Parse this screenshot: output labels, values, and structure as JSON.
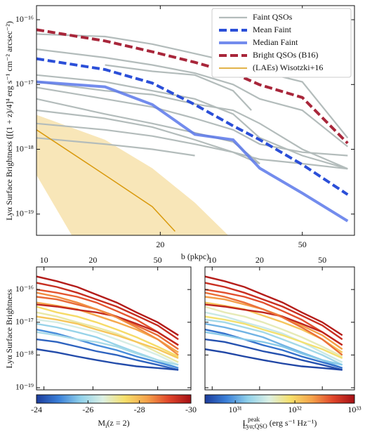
{
  "chart_data": [
    {
      "type": "line",
      "xlabel": "b (pkpc)",
      "ylabel": "Lyα Surface Brightness ([(1 + z)/4]⁴ erg s⁻¹ cm⁻² arcsec⁻²)",
      "xscale": "log",
      "yscale": "log",
      "xlim": [
        9,
        70
      ],
      "ylim": [
        4.7e-20,
        1.65e-16
      ],
      "xticks": [
        20,
        50
      ],
      "yticks": [
        {
          "value": 1e-19,
          "label": "10⁻¹⁹"
        },
        {
          "value": 1e-18,
          "label": "10⁻¹⁸"
        },
        {
          "value": 1e-17,
          "label": "10⁻¹⁷"
        },
        {
          "value": 1e-16,
          "label": "10⁻¹⁶"
        }
      ],
      "legend": "upper right",
      "band": {
        "color": "#f8e6b8",
        "x_upper": [
          9,
          14,
          19,
          25,
          31
        ],
        "upper": [
          3.4e-18,
          1.4e-18,
          5.1e-19,
          1.5e-19,
          4.7e-20
        ],
        "x_lower": [
          9,
          11.3
        ],
        "lower": [
          4e-19,
          4.7e-20
        ]
      },
      "faint": {
        "name": "Faint QSOs",
        "color": "#b3bcbb",
        "style": "solid",
        "lines": [
          {
            "x": [
              9,
              14,
              19,
              25,
              32,
              38,
              50,
              67
            ],
            "values": [
              6e-17,
              5.5e-17,
              4.2e-17,
              3e-17,
              2.2e-17,
              1.6e-17,
              1.1e-17,
              1.5e-18
            ]
          },
          {
            "x": [
              9,
              14,
              19,
              25,
              32,
              38,
              50,
              67
            ],
            "values": [
              3.5e-17,
              2.6e-17,
              2e-17,
              1.5e-17,
              1e-17,
              6e-18,
              4e-18,
              1.1e-18
            ]
          },
          {
            "x": [
              9,
              14,
              19,
              25,
              32,
              38,
              50,
              67
            ],
            "values": [
              1.4e-17,
              1.1e-17,
              8e-18,
              6e-18,
              3.5e-18,
              1.5e-18,
              8e-19,
              5e-19
            ]
          },
          {
            "x": [
              9,
              14,
              19,
              25,
              32,
              38,
              50,
              67
            ],
            "values": [
              1.1e-17,
              8e-18,
              7e-18,
              5e-18,
              4e-18,
              2.5e-18,
              1e-18,
              5e-19
            ]
          },
          {
            "x": [
              9,
              14,
              19,
              25,
              32,
              38,
              50,
              67
            ],
            "values": [
              9e-18,
              6e-18,
              4.5e-18,
              3e-18,
              2e-18,
              1.2e-18,
              9e-19,
              8e-19
            ]
          },
          {
            "x": [
              9,
              14,
              19,
              25,
              32,
              38
            ],
            "values": [
              6e-18,
              3.5e-18,
              2.5e-18,
              1.8e-18,
              1.3e-18,
              6e-19
            ]
          },
          {
            "x": [
              9,
              14,
              19,
              25,
              32,
              38,
              50,
              67
            ],
            "values": [
              4e-18,
              3e-18,
              2.2e-18,
              1.4e-18,
              9e-19,
              7e-19,
              6e-19,
              5e-19
            ]
          },
          {
            "x": [
              9,
              14,
              19,
              25,
              32,
              38
            ],
            "values": [
              2.5e-18,
              2e-18,
              1.6e-18,
              1.2e-18,
              9e-19,
              6e-19
            ]
          },
          {
            "x": [
              14,
              19,
              25,
              32,
              36
            ],
            "values": [
              2e-17,
              1.6e-17,
              1.4e-17,
              8e-18,
              4e-18
            ]
          },
          {
            "x": [
              9,
              14,
              19,
              25
            ],
            "values": [
              1.5e-18,
              1.2e-18,
              1e-18,
              8e-19
            ]
          }
        ]
      },
      "series": [
        {
          "name": "Mean Faint",
          "color": "#2b4fd8",
          "style": "dashed",
          "x": [
            9,
            14,
            19,
            25,
            32,
            38,
            50,
            67
          ],
          "values": [
            2.5e-17,
            1.7e-17,
            1.05e-17,
            4.9e-18,
            2.3e-18,
            1.4e-18,
            5.8e-19,
            2e-19
          ]
        },
        {
          "name": "Median Faint",
          "color": "#5a78ea",
          "style": "solid",
          "x": [
            9,
            14,
            19,
            25,
            32,
            38,
            50,
            67
          ],
          "values": [
            1.1e-17,
            9.2e-18,
            4.9e-18,
            1.7e-18,
            1.4e-18,
            5.1e-19,
            2.1e-19,
            7.8e-20
          ]
        },
        {
          "name": "Bright QSOs (B16)",
          "color": "#a8263a",
          "style": "dashed",
          "x": [
            9,
            14,
            19,
            25,
            32,
            38,
            50,
            67
          ],
          "values": [
            7e-17,
            4.7e-17,
            3.2e-17,
            2.2e-17,
            1.5e-17,
            9.9e-18,
            6.3e-18,
            1.24e-18
          ]
        },
        {
          "name": "(LAEs) Wisotzki+16",
          "color": "#d99a0e",
          "style": "thin",
          "x": [
            9,
            14,
            19,
            22
          ],
          "values": [
            2e-18,
            4e-19,
            1.3e-19,
            5.4e-20
          ]
        }
      ]
    },
    {
      "type": "line",
      "ylabel": "Lyα Surface Brightness",
      "xscale": "log",
      "yscale": "log",
      "xlim": [
        9,
        80
      ],
      "ylim": [
        8.6e-20,
        4.9e-16
      ],
      "xticks": [
        10,
        20,
        50
      ],
      "yticks": [
        {
          "value": 1e-19,
          "label": "10⁻¹⁹"
        },
        {
          "value": 1e-18,
          "label": "10⁻¹⁸"
        },
        {
          "value": 1e-17,
          "label": "10⁻¹⁷"
        },
        {
          "value": 1e-16,
          "label": "10⁻¹⁶"
        }
      ],
      "colormap": [
        "#1c3c9c",
        "#3a7fd8",
        "#8fd0ea",
        "#dcf0e4",
        "#f6e06a",
        "#f5a34a",
        "#e0452a",
        "#a50f15"
      ],
      "x": [
        9,
        12,
        16,
        21,
        28,
        37,
        50,
        67
      ],
      "lines": [
        {
          "mi": -29.8,
          "lpeak": 8e+32,
          "values": [
            2.5e-16,
            1.8e-16,
            1.2e-16,
            7e-17,
            4e-17,
            2e-17,
            1e-17,
            4e-18
          ]
        },
        {
          "mi": -29.5,
          "lpeak": 6e+32,
          "values": [
            1.6e-16,
            1.2e-16,
            8e-17,
            5e-17,
            3e-17,
            1.6e-17,
            8e-18,
            3e-18
          ]
        },
        {
          "mi": -29.0,
          "lpeak": 4e+32,
          "values": [
            1e-16,
            8e-17,
            6e-17,
            4e-17,
            2.2e-17,
            1.2e-17,
            5e-18,
            2e-18
          ]
        },
        {
          "mi": -28.8,
          "lpeak": 2e+32,
          "values": [
            6e-17,
            5e-17,
            3.5e-17,
            2.5e-17,
            1.5e-17,
            8e-18,
            4e-18,
            1.5e-18
          ]
        },
        {
          "mi": -28.2,
          "lpeak": 1.2e+32,
          "values": [
            4e-17,
            3.2e-17,
            2.5e-17,
            1.6e-17,
            1e-17,
            6e-18,
            3e-18,
            1.2e-18
          ]
        },
        {
          "mi": -29.6,
          "lpeak": 7e+32,
          "values": [
            3.5e-17,
            3e-17,
            2.4e-17,
            2e-17,
            1.5e-17,
            9e-18,
            5e-18,
            2e-18
          ]
        },
        {
          "mi": -27.5,
          "lpeak": 5e+31,
          "values": [
            3e-17,
            2e-17,
            1.5e-17,
            1e-17,
            6e-18,
            3.5e-18,
            1.8e-18,
            9e-19
          ]
        },
        {
          "mi": -27.0,
          "lpeak": 3e+31,
          "values": [
            2e-17,
            1.5e-17,
            1e-17,
            7e-18,
            4.5e-18,
            2.5e-18,
            1.2e-18,
            6e-19
          ]
        },
        {
          "mi": -26.5,
          "lpeak": 2e+31,
          "values": [
            1.2e-17,
            1e-17,
            7e-18,
            5e-18,
            3e-18,
            1.8e-18,
            1e-18,
            5e-19
          ]
        },
        {
          "mi": -25.8,
          "lpeak": 1.2e+31,
          "values": [
            9e-18,
            7e-18,
            5e-18,
            3.5e-18,
            2e-18,
            1.2e-18,
            7e-19,
            4e-19
          ]
        },
        {
          "mi": -25.0,
          "lpeak": 6e+30,
          "values": [
            6e-18,
            4.5e-18,
            3e-18,
            2e-18,
            1.4e-18,
            9e-19,
            6e-19,
            4e-19
          ]
        },
        {
          "mi": -24.5,
          "lpeak": 4e+30,
          "values": [
            3e-18,
            2.5e-18,
            1.8e-18,
            1.3e-18,
            1e-18,
            7e-19,
            5e-19,
            3.5e-19
          ]
        },
        {
          "mi": -24.2,
          "lpeak": 3.5e+30,
          "values": [
            1.5e-18,
            1.2e-18,
            9e-19,
            7e-19,
            5.5e-19,
            4.5e-19,
            4e-19,
            3.5e-19
          ]
        },
        {
          "mi": -28.5,
          "lpeak": 3e+32,
          "values": [
            8e-17,
            6e-17,
            4e-17,
            2.5e-17,
            1.4e-17,
            7e-18,
            3e-18,
            1e-18
          ]
        },
        {
          "mi": -26.0,
          "lpeak": 1.5e+31,
          "values": [
            5e-18,
            4e-18,
            3e-18,
            2.5e-18,
            1.8e-18,
            1.1e-18,
            7e-19,
            5e-19
          ]
        },
        {
          "mi": -27.8,
          "lpeak": 8e+31,
          "values": [
            1.5e-17,
            1.2e-17,
            9e-18,
            6e-18,
            4e-18,
            2.5e-18,
            1.5e-18,
            8e-19
          ]
        }
      ],
      "colorbar": {
        "label": {
          "main": "M",
          "sub": "i",
          "rest": "(z = 2)"
        },
        "scale": "linear",
        "lim": [
          -24,
          -30
        ],
        "ticks": [
          -24,
          -26,
          -28,
          -30
        ]
      }
    },
    {
      "type": "line",
      "xscale": "log",
      "yscale": "log",
      "xlim": [
        9,
        80
      ],
      "ylim": [
        8.6e-20,
        4.9e-16
      ],
      "xticks": [
        10,
        20,
        50
      ],
      "colorbar": {
        "label": {
          "main": "L",
          "sup": "peak",
          "sub": "Lyα;QSO",
          "rest": " (erg s⁻¹ Hz⁻¹)"
        },
        "scale": "log",
        "lim": [
          3.1e+30,
          1e+33
        ],
        "ticks": [
          {
            "value": 1e+31,
            "label": "10³¹"
          },
          {
            "value": 1e+32,
            "label": "10³²"
          },
          {
            "value": 1e+33,
            "label": "10³³"
          }
        ]
      }
    }
  ]
}
